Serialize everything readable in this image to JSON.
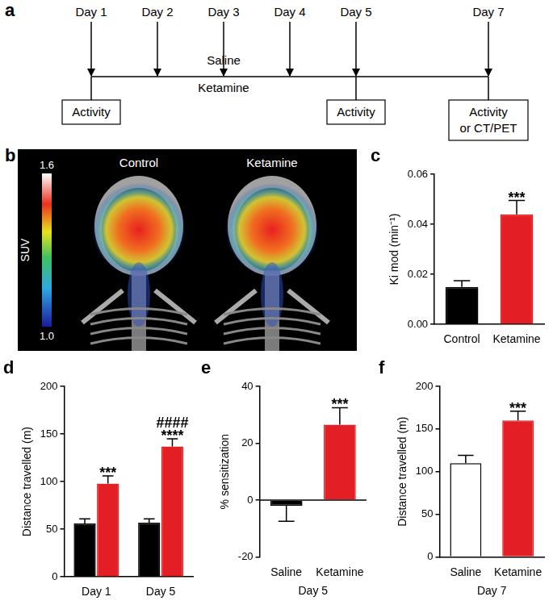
{
  "timeline": {
    "panel": "a",
    "days": [
      1,
      2,
      3,
      4,
      5,
      7
    ],
    "day_labels": [
      "Day 1",
      "Day 2",
      "Day 3",
      "Day 4",
      "Day 5",
      "Day 7"
    ],
    "treatments": [
      "Saline",
      "Ketamine"
    ],
    "boxes": [
      {
        "day": 1,
        "lines": [
          "Activity"
        ]
      },
      {
        "day": 5,
        "lines": [
          "Activity"
        ]
      },
      {
        "day": 7,
        "lines": [
          "Activity",
          "or CT/PET"
        ]
      }
    ]
  },
  "image": {
    "panel": "b",
    "labels": [
      "Control",
      "Ketamine"
    ],
    "colorbar": {
      "title": "SUV",
      "range": [
        1.0,
        1.6
      ],
      "ticks": [
        {
          "value": 1.0,
          "label": "1.0"
        },
        {
          "value": 1.6,
          "label": "1.6"
        }
      ]
    }
  },
  "chart_data": [
    {
      "panel": "c",
      "type": "bar",
      "categories": [
        "Control",
        "Ketamine"
      ],
      "values": [
        0.015,
        0.044
      ],
      "errors": [
        0.0025,
        0.0055
      ],
      "colors": [
        "#000000",
        "#e31e24"
      ],
      "y_label": "Ki mod (min⁻¹)",
      "ylim": [
        0,
        0.06
      ],
      "yticks": [
        {
          "value": 0,
          "label": "0.00"
        },
        {
          "value": 0.02,
          "label": "0.02"
        },
        {
          "value": 0.04,
          "label": "0.04"
        },
        {
          "value": 0.06,
          "label": "0.06"
        }
      ],
      "grid": false,
      "annotations": [
        {
          "category": "Ketamine",
          "series": 0,
          "lines": [
            "***"
          ]
        }
      ]
    },
    {
      "panel": "d",
      "type": "bar",
      "categories": [
        "Day 1",
        "Day 5"
      ],
      "series": [
        {
          "color": "#000000",
          "values": [
            56,
            57
          ],
          "errors": [
            5,
            4
          ]
        },
        {
          "color": "#e31e24",
          "values": [
            98,
            137
          ],
          "errors": [
            8,
            8
          ]
        }
      ],
      "y_label": "Distance travelled (m)",
      "ylim": [
        0,
        200
      ],
      "yticks": [
        0,
        50,
        100,
        150,
        200
      ],
      "grid": false,
      "annotations": [
        {
          "category": "Day 1",
          "series": 1,
          "lines": [
            "***"
          ]
        },
        {
          "category": "Day 5",
          "series": 1,
          "lines": [
            "####",
            "****"
          ]
        }
      ]
    },
    {
      "panel": "e",
      "type": "bar",
      "categories": [
        "Saline",
        "Ketamine"
      ],
      "values": [
        -2,
        26.5
      ],
      "errors": [
        5.5,
        6
      ],
      "colors": [
        "#000000",
        "#e31e24"
      ],
      "x_label": "Day 5",
      "y_label": "% sensitization",
      "ylim": [
        -20,
        40
      ],
      "yticks": [
        -20,
        0,
        20,
        40
      ],
      "grid": false,
      "annotations": [
        {
          "category": "Ketamine",
          "series": 0,
          "lines": [
            "***"
          ]
        }
      ]
    },
    {
      "panel": "f",
      "type": "bar",
      "categories": [
        "Saline",
        "Ketamine"
      ],
      "values": [
        110,
        160
      ],
      "errors": [
        9,
        11
      ],
      "colors": [
        "#ffffff",
        "#e31e24"
      ],
      "x_label": "Day 7",
      "y_label": "Distance travelled (m)",
      "ylim": [
        0,
        200
      ],
      "yticks": [
        0,
        50,
        100,
        150,
        200
      ],
      "grid": false,
      "annotations": [
        {
          "category": "Ketamine",
          "series": 0,
          "lines": [
            "***"
          ]
        }
      ]
    }
  ]
}
